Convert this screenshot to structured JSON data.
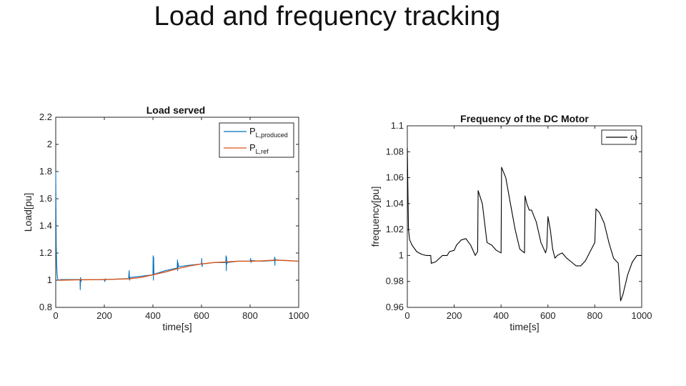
{
  "slide": {
    "title": "Load and frequency tracking"
  },
  "chart_data": [
    {
      "type": "line",
      "title": "Load served",
      "xlabel": "time[s]",
      "ylabel": "Load[pu]",
      "xlim": [
        0,
        1000
      ],
      "ylim": [
        0.8,
        2.2
      ],
      "xticks": [
        "0",
        "200",
        "400",
        "600",
        "800",
        "1000"
      ],
      "yticks": [
        "0.8",
        "1",
        "1.2",
        "1.4",
        "1.6",
        "1.8",
        "2",
        "2.2"
      ],
      "legend_position": "top-right",
      "series": [
        {
          "name": "P",
          "sub": "L,produced",
          "color": "#0072BD",
          "x": [
            0,
            2,
            4,
            6,
            8,
            10,
            20,
            50,
            100,
            101,
            102,
            104,
            106,
            110,
            200,
            202,
            204,
            206,
            300,
            302,
            304,
            306,
            400,
            401,
            402,
            403,
            404,
            406,
            450,
            500,
            501,
            502,
            503,
            506,
            550,
            600,
            601,
            602,
            604,
            650,
            700,
            701,
            702,
            703,
            704,
            706,
            750,
            800,
            802,
            804,
            806,
            850,
            900,
            901,
            902,
            903,
            904,
            950,
            1000
          ],
          "y": [
            1.8,
            1.25,
            1.1,
            1.04,
            1.01,
            1.0,
            1.005,
            1.005,
            1.005,
            0.93,
            1.02,
            0.99,
            1.005,
            1.003,
            1.005,
            0.99,
            1.01,
            1.005,
            1.012,
            1.07,
            1.0,
            1.02,
            1.04,
            1.18,
            1.0,
            1.17,
            1.05,
            1.045,
            1.07,
            1.09,
            1.15,
            1.07,
            1.13,
            1.1,
            1.11,
            1.12,
            1.16,
            1.1,
            1.12,
            1.13,
            1.13,
            1.18,
            1.07,
            1.17,
            1.12,
            1.13,
            1.14,
            1.14,
            1.16,
            1.13,
            1.145,
            1.14,
            1.145,
            1.17,
            1.11,
            1.16,
            1.15,
            1.145,
            1.14
          ]
        },
        {
          "name": "P",
          "sub": "L,ref",
          "color": "#D95319",
          "x": [
            10,
            100,
            200,
            300,
            350,
            400,
            450,
            500,
            550,
            600,
            650,
            700,
            750,
            800,
            850,
            900,
            950,
            1000
          ],
          "y": [
            1.0,
            1.003,
            1.005,
            1.01,
            1.02,
            1.04,
            1.06,
            1.085,
            1.105,
            1.12,
            1.13,
            1.135,
            1.14,
            1.14,
            1.142,
            1.148,
            1.145,
            1.14
          ]
        }
      ]
    },
    {
      "type": "line",
      "title": "Frequency of the DC Motor",
      "xlabel": "time[s]",
      "ylabel": "frequency[pu]",
      "xlim": [
        0,
        1000
      ],
      "ylim": [
        0.96,
        1.1
      ],
      "xticks": [
        "0",
        "200",
        "400",
        "600",
        "800",
        "1000"
      ],
      "yticks": [
        "0.96",
        "0.98",
        "1",
        "1.02",
        "1.04",
        "1.06",
        "1.08",
        "1.1"
      ],
      "legend_position": "top-right",
      "series": [
        {
          "name": "ω",
          "color": "#000000",
          "x": [
            0,
            5,
            10,
            20,
            40,
            60,
            80,
            100,
            102,
            120,
            150,
            170,
            180,
            200,
            210,
            230,
            250,
            270,
            290,
            300,
            302,
            320,
            340,
            360,
            380,
            400,
            402,
            420,
            440,
            460,
            480,
            500,
            502,
            510,
            520,
            530,
            550,
            570,
            590,
            595,
            600,
            610,
            620,
            630,
            640,
            660,
            680,
            700,
            720,
            740,
            760,
            780,
            800,
            805,
            820,
            840,
            860,
            880,
            890,
            900,
            910,
            920,
            940,
            960,
            980,
            1000
          ],
          "y": [
            1.083,
            1.02,
            1.012,
            1.008,
            1.003,
            1.001,
            1.0,
            1.0,
            0.994,
            0.995,
            1.0,
            1.0,
            1.003,
            1.004,
            1.008,
            1.012,
            1.013,
            1.008,
            1.0,
            1.003,
            1.05,
            1.04,
            1.01,
            1.008,
            1.004,
            1.002,
            1.068,
            1.06,
            1.04,
            1.02,
            1.005,
            1.002,
            1.046,
            1.04,
            1.035,
            1.035,
            1.026,
            1.01,
            1.002,
            1.006,
            1.03,
            1.02,
            1.005,
            0.998,
            1.0,
            1.002,
            0.998,
            0.995,
            0.992,
            0.992,
            0.996,
            1.003,
            1.01,
            1.036,
            1.033,
            1.025,
            1.01,
            0.998,
            0.996,
            0.994,
            0.965,
            0.97,
            0.985,
            0.995,
            1.0,
            1.0
          ]
        }
      ]
    }
  ]
}
